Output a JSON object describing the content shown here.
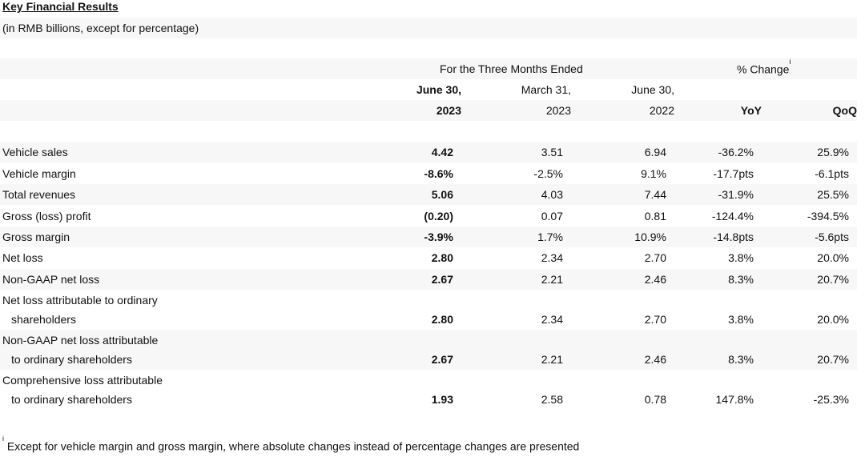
{
  "title": "Key Financial Results",
  "subtitle": "(in RMB billions, except for percentage)",
  "header": {
    "period_group": "For the Three Months Ended",
    "change_group": "% Change",
    "change_sup": "i",
    "col1_line1": "June 30,",
    "col1_line2": "2023",
    "col2_line1": "March 31,",
    "col2_line2": "2023",
    "col3_line1": "June 30,",
    "col3_line2": "2022",
    "col4": "YoY",
    "col5": "QoQ"
  },
  "rows": [
    {
      "label": "Vehicle sales",
      "v1": "4.42",
      "v2": "3.51",
      "v3": "6.94",
      "yoy": "-36.2%",
      "qoq": "25.9%"
    },
    {
      "label": "Vehicle margin",
      "v1": "-8.6%",
      "v2": "-2.5%",
      "v3": "9.1%",
      "yoy": "-17.7pts",
      "qoq": "-6.1pts"
    },
    {
      "label": "Total revenues",
      "v1": "5.06",
      "v2": "4.03",
      "v3": "7.44",
      "yoy": "-31.9%",
      "qoq": "25.5%"
    },
    {
      "label": "Gross (loss) profit",
      "v1": "(0.20)",
      "v2": "0.07",
      "v3": "0.81",
      "yoy": "-124.4%",
      "qoq": "-394.5%"
    },
    {
      "label": "Gross margin",
      "v1": "-3.9%",
      "v2": "1.7%",
      "v3": "10.9%",
      "yoy": "-14.8pts",
      "qoq": "-5.6pts"
    },
    {
      "label": "Net loss",
      "v1": "2.80",
      "v2": "2.34",
      "v3": "2.70",
      "yoy": "3.8%",
      "qoq": "20.0%"
    },
    {
      "label": "Non-GAAP net loss",
      "v1": "2.67",
      "v2": "2.21",
      "v3": "2.46",
      "yoy": "8.3%",
      "qoq": "20.7%"
    },
    {
      "label": "Net loss attributable to ordinary",
      "label2": "shareholders",
      "v1": "2.80",
      "v2": "2.34",
      "v3": "2.70",
      "yoy": "3.8%",
      "qoq": "20.0%"
    },
    {
      "label": "Non-GAAP net loss attributable",
      "label2": "to ordinary shareholders",
      "v1": "2.67",
      "v2": "2.21",
      "v3": "2.46",
      "yoy": "8.3%",
      "qoq": "20.7%"
    },
    {
      "label": "Comprehensive loss attributable",
      "label2": "to ordinary shareholders",
      "v1": "1.93",
      "v2": "2.58",
      "v3": "0.78",
      "yoy": "147.8%",
      "qoq": "-25.3%"
    }
  ],
  "footnote_sup": "i",
  "footnote": "Except for vehicle margin and gross margin, where absolute changes instead of percentage changes are presented"
}
